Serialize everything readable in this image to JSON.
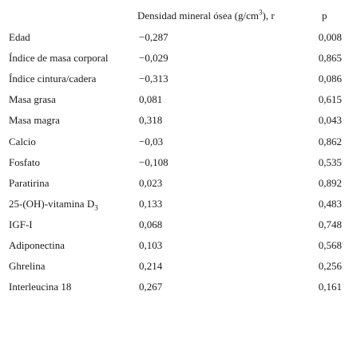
{
  "header": {
    "density_col_prefix": "Densidad mineral ósea (g/cm",
    "density_col_sup": "3",
    "density_col_suffix": "), r",
    "p_col": "p"
  },
  "rows": [
    {
      "name": "Edad",
      "r": "−0,287",
      "p": "0,008"
    },
    {
      "name": "Índice de masa corporal",
      "r": "−0,029",
      "p": "0,865"
    },
    {
      "name": "Índice cintura/cadera",
      "r": "−0,313",
      "p": "0,086"
    },
    {
      "name": "Masa grasa",
      "r": "0,081",
      "p": "0,615"
    },
    {
      "name": "Masa magra",
      "r": "0,318",
      "p": "0,043"
    },
    {
      "name": "Calcio",
      "r": "−0,03",
      "p": "0,862"
    },
    {
      "name": "Fosfato",
      "r": "−0,108",
      "p": "0,535"
    },
    {
      "name": "Paratirina",
      "r": "0,023",
      "p": "0,892"
    },
    {
      "name": "25-(OH)-vitamina D",
      "name_sub": "3",
      "r": "0,133",
      "p": "0,483"
    },
    {
      "name": "IGF-I",
      "r": "0,068",
      "p": "0,748"
    },
    {
      "name": "Adiponectina",
      "r": "0,103",
      "p": "0,568"
    },
    {
      "name": "Ghrelina",
      "r": "0,214",
      "p": "0,256"
    },
    {
      "name": "Interleucina 18",
      "r": "0,267",
      "p": "0,161"
    }
  ]
}
